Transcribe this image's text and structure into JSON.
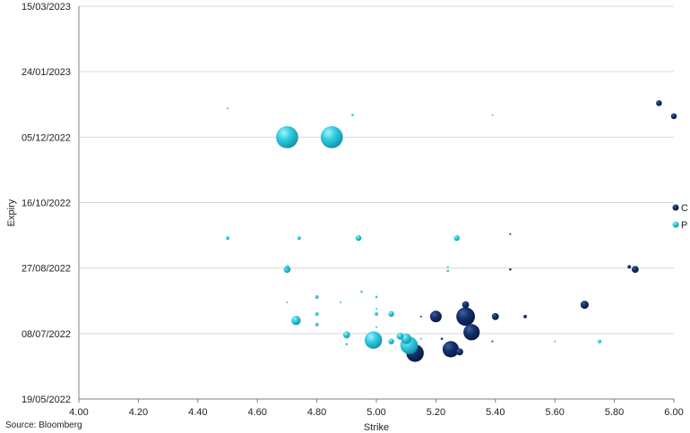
{
  "source_note": "Source: Bloomberg",
  "chart_data": {
    "type": "scatter",
    "subtype": "bubble",
    "xlabel": "Strike",
    "ylabel": "Expiry",
    "xlim": [
      4.0,
      6.0
    ],
    "ylim": [
      "2022-05-19",
      "2023-03-15"
    ],
    "x_ticks": [
      "4.00",
      "4.20",
      "4.40",
      "4.60",
      "4.80",
      "5.00",
      "5.20",
      "5.40",
      "5.60",
      "5.80",
      "6.00"
    ],
    "y_ticks": [
      {
        "date": "2022-05-19",
        "label": "19/05/2022"
      },
      {
        "date": "2022-07-08",
        "label": "08/07/2022"
      },
      {
        "date": "2022-08-27",
        "label": "27/08/2022"
      },
      {
        "date": "2022-10-16",
        "label": "16/10/2022"
      },
      {
        "date": "2022-12-05",
        "label": "05/12/2022"
      },
      {
        "date": "2023-01-24",
        "label": "24/01/2023"
      },
      {
        "date": "2023-03-15",
        "label": "15/03/2023"
      }
    ],
    "grid": "horizontal",
    "legend_position": "right",
    "series": [
      {
        "name": "C",
        "color": "#0f2a5c",
        "points": [
          {
            "x": 5.95,
            "y": "2022-12-31",
            "size": 5
          },
          {
            "x": 6.0,
            "y": "2022-12-21",
            "size": 5
          },
          {
            "x": 5.45,
            "y": "2022-09-22",
            "size": 1
          },
          {
            "x": 5.45,
            "y": "2022-08-26",
            "size": 2
          },
          {
            "x": 5.85,
            "y": "2022-08-28",
            "size": 3
          },
          {
            "x": 5.87,
            "y": "2022-08-26",
            "size": 6
          },
          {
            "x": 5.7,
            "y": "2022-07-30",
            "size": 7
          },
          {
            "x": 5.5,
            "y": "2022-07-21",
            "size": 3
          },
          {
            "x": 5.4,
            "y": "2022-07-21",
            "size": 6
          },
          {
            "x": 5.3,
            "y": "2022-07-30",
            "size": 6
          },
          {
            "x": 5.3,
            "y": "2022-07-21",
            "size": 16
          },
          {
            "x": 5.32,
            "y": "2022-07-09",
            "size": 14
          },
          {
            "x": 5.2,
            "y": "2022-07-21",
            "size": 10
          },
          {
            "x": 5.15,
            "y": "2022-07-21",
            "size": 1
          },
          {
            "x": 5.22,
            "y": "2022-07-04",
            "size": 2
          },
          {
            "x": 5.25,
            "y": "2022-06-26",
            "size": 14
          },
          {
            "x": 5.28,
            "y": "2022-06-24",
            "size": 6
          },
          {
            "x": 5.13,
            "y": "2022-06-23",
            "size": 15
          },
          {
            "x": 5.39,
            "y": "2022-07-02",
            "size": 1
          }
        ]
      },
      {
        "name": "P",
        "color": "#2cc3d8",
        "points": [
          {
            "x": 4.7,
            "y": "2022-12-05",
            "size": 19
          },
          {
            "x": 4.85,
            "y": "2022-12-05",
            "size": 19
          },
          {
            "x": 4.92,
            "y": "2022-12-22",
            "size": 2
          },
          {
            "x": 5.39,
            "y": "2022-12-22",
            "size": 1
          },
          {
            "x": 4.5,
            "y": "2022-12-27",
            "size": 1
          },
          {
            "x": 4.5,
            "y": "2022-09-19",
            "size": 3
          },
          {
            "x": 4.74,
            "y": "2022-09-19",
            "size": 3
          },
          {
            "x": 4.94,
            "y": "2022-09-19",
            "size": 5
          },
          {
            "x": 5.27,
            "y": "2022-09-19",
            "size": 5
          },
          {
            "x": 4.7,
            "y": "2022-08-28",
            "size": 3
          },
          {
            "x": 4.7,
            "y": "2022-08-26",
            "size": 6
          },
          {
            "x": 5.24,
            "y": "2022-08-28",
            "size": 1
          },
          {
            "x": 5.24,
            "y": "2022-08-25",
            "size": 2
          },
          {
            "x": 4.8,
            "y": "2022-08-05",
            "size": 3
          },
          {
            "x": 4.88,
            "y": "2022-08-01",
            "size": 1
          },
          {
            "x": 4.95,
            "y": "2022-08-09",
            "size": 2
          },
          {
            "x": 5.0,
            "y": "2022-08-05",
            "size": 2
          },
          {
            "x": 4.7,
            "y": "2022-08-01",
            "size": 1
          },
          {
            "x": 4.8,
            "y": "2022-07-23",
            "size": 3
          },
          {
            "x": 4.8,
            "y": "2022-07-15",
            "size": 3
          },
          {
            "x": 4.73,
            "y": "2022-07-18",
            "size": 8
          },
          {
            "x": 5.0,
            "y": "2022-07-23",
            "size": 3
          },
          {
            "x": 5.05,
            "y": "2022-07-23",
            "size": 5
          },
          {
            "x": 4.9,
            "y": "2022-07-07",
            "size": 6
          },
          {
            "x": 4.9,
            "y": "2022-06-30",
            "size": 2
          },
          {
            "x": 5.0,
            "y": "2022-07-27",
            "size": 1
          },
          {
            "x": 5.0,
            "y": "2022-07-13",
            "size": 1
          },
          {
            "x": 5.08,
            "y": "2022-07-06",
            "size": 6
          },
          {
            "x": 5.05,
            "y": "2022-07-02",
            "size": 5
          },
          {
            "x": 5.1,
            "y": "2022-07-04",
            "size": 9
          },
          {
            "x": 4.99,
            "y": "2022-07-03",
            "size": 15
          },
          {
            "x": 5.11,
            "y": "2022-06-29",
            "size": 15
          },
          {
            "x": 5.15,
            "y": "2022-07-04",
            "size": 1
          },
          {
            "x": 5.75,
            "y": "2022-07-02",
            "size": 3
          },
          {
            "x": 5.6,
            "y": "2022-07-02",
            "size": 1
          }
        ]
      }
    ]
  }
}
